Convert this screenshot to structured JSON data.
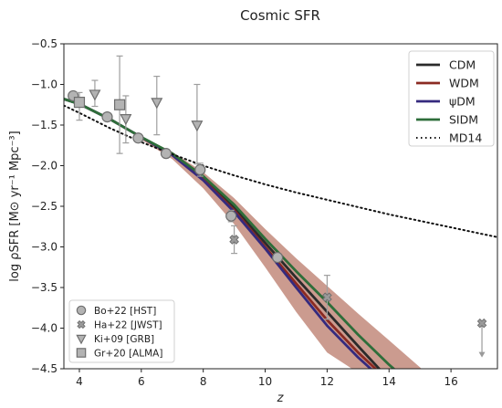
{
  "chart_data": {
    "type": "line",
    "title": "Cosmic SFR",
    "xlabel": "z",
    "ylabel": "log ρSFR [M⊙ yr⁻¹ Mpc⁻³]",
    "xlim": [
      3.5,
      17.5
    ],
    "ylim": [
      -4.5,
      -0.5
    ],
    "xticks": [
      4,
      6,
      8,
      10,
      12,
      14,
      16
    ],
    "yticks": [
      -0.5,
      -1.0,
      -1.5,
      -2.0,
      -2.5,
      -3.0,
      -3.5,
      -4.0,
      -4.5
    ],
    "grid": false,
    "legend_placement": "top-right",
    "series": [
      {
        "name": "CDM",
        "color": "#2b2b2b",
        "style": "solid",
        "x": [
          3.5,
          4.0,
          5.0,
          6.0,
          7.0,
          8.0,
          9.0,
          10.0,
          11.0,
          12.0,
          13.0,
          13.8
        ],
        "y": [
          -1.18,
          -1.24,
          -1.43,
          -1.65,
          -1.86,
          -2.15,
          -2.52,
          -2.95,
          -3.38,
          -3.8,
          -4.22,
          -4.55
        ]
      },
      {
        "name": "WDM",
        "color": "#8b2a22",
        "style": "solid",
        "x": [
          3.5,
          4.0,
          5.0,
          6.0,
          7.0,
          8.0,
          9.0,
          10.0,
          11.0,
          12.0,
          13.0,
          13.7
        ],
        "y": [
          -1.18,
          -1.24,
          -1.43,
          -1.65,
          -1.87,
          -2.17,
          -2.55,
          -3.0,
          -3.45,
          -3.9,
          -4.3,
          -4.55
        ]
      },
      {
        "name": "ψDM",
        "color": "#352a7e",
        "style": "solid",
        "x": [
          3.5,
          4.0,
          5.0,
          6.0,
          7.0,
          8.0,
          9.0,
          10.0,
          11.0,
          12.0,
          13.0,
          13.55
        ],
        "y": [
          -1.18,
          -1.24,
          -1.43,
          -1.65,
          -1.87,
          -2.18,
          -2.57,
          -3.02,
          -3.5,
          -3.97,
          -4.36,
          -4.55
        ]
      },
      {
        "name": "SIDM",
        "color": "#2e6e3a",
        "style": "solid",
        "x": [
          3.5,
          4.0,
          5.0,
          6.0,
          7.0,
          8.0,
          9.0,
          10.0,
          11.0,
          12.0,
          13.0,
          14.0,
          14.3
        ],
        "y": [
          -1.18,
          -1.24,
          -1.43,
          -1.65,
          -1.85,
          -2.13,
          -2.48,
          -2.9,
          -3.3,
          -3.68,
          -4.08,
          -4.45,
          -4.55
        ]
      },
      {
        "name": "MD14",
        "color": "#111111",
        "style": "dotted",
        "x": [
          3.5,
          4.0,
          5.0,
          6.0,
          7.0,
          8.0,
          9.0,
          10.0,
          11.0,
          12.0,
          13.0,
          14.0,
          15.0,
          16.0,
          17.0,
          17.5
        ],
        "y": [
          -1.26,
          -1.35,
          -1.54,
          -1.71,
          -1.86,
          -2.0,
          -2.12,
          -2.23,
          -2.33,
          -2.42,
          -2.51,
          -2.6,
          -2.68,
          -2.76,
          -2.84,
          -2.88
        ]
      }
    ],
    "band": {
      "color": "#b97a6a",
      "x": [
        6.0,
        7.0,
        8.0,
        9.0,
        10.0,
        11.0,
        12.0,
        13.0,
        14.0,
        15.2
      ],
      "upper": [
        -1.64,
        -1.83,
        -2.08,
        -2.4,
        -2.78,
        -3.14,
        -3.48,
        -3.82,
        -4.15,
        -4.55
      ],
      "lower": [
        -1.68,
        -1.92,
        -2.28,
        -2.72,
        -3.25,
        -3.8,
        -4.3,
        -4.55,
        -4.55,
        -4.55
      ]
    },
    "data_points": [
      {
        "name": "Bo+22 [HST]",
        "marker": "circle",
        "points": [
          {
            "x": 3.8,
            "y": -1.14,
            "yerr_lo": 0.05,
            "yerr_hi": 0.05
          },
          {
            "x": 4.9,
            "y": -1.4,
            "yerr_lo": 0.05,
            "yerr_hi": 0.05
          },
          {
            "x": 5.9,
            "y": -1.66,
            "yerr_lo": 0.05,
            "yerr_hi": 0.05
          },
          {
            "x": 6.8,
            "y": -1.85,
            "yerr_lo": 0.05,
            "yerr_hi": 0.05
          },
          {
            "x": 7.9,
            "y": -2.05,
            "yerr_lo": 0.08,
            "yerr_hi": 0.08
          },
          {
            "x": 8.9,
            "y": -2.62,
            "yerr_lo": 0.07,
            "yerr_hi": 0.07
          },
          {
            "x": 10.4,
            "y": -3.13,
            "yerr_lo": 0.05,
            "yerr_hi": 0.05
          }
        ]
      },
      {
        "name": "Ha+22 [JWST]",
        "marker": "x",
        "points": [
          {
            "x": 9.0,
            "y": -2.91,
            "yerr_lo": 0.17,
            "yerr_hi": 0.17
          },
          {
            "x": 12.0,
            "y": -3.62,
            "yerr_lo": 0.27,
            "yerr_hi": 0.27
          },
          {
            "x": 17.0,
            "y": -3.94,
            "upper_limit": true,
            "arrow_to": -4.35
          }
        ]
      },
      {
        "name": "Ki+09 [GRB]",
        "marker": "triangle-down",
        "points": [
          {
            "x": 4.5,
            "y": -1.12,
            "yerr_lo": 0.15,
            "yerr_hi": 0.17
          },
          {
            "x": 5.5,
            "y": -1.42,
            "yerr_lo": 0.3,
            "yerr_hi": 0.28
          },
          {
            "x": 6.5,
            "y": -1.22,
            "yerr_lo": 0.4,
            "yerr_hi": 0.32
          },
          {
            "x": 7.8,
            "y": -1.5,
            "yerr_lo": 0.48,
            "yerr_hi": 0.5
          }
        ]
      },
      {
        "name": "Gr+20 [ALMA]",
        "marker": "square",
        "points": [
          {
            "x": 4.0,
            "y": -1.22,
            "yerr_lo": 0.22,
            "yerr_hi": 0.12
          },
          {
            "x": 5.3,
            "y": -1.25,
            "yerr_lo": 0.6,
            "yerr_hi": 0.6
          }
        ]
      }
    ]
  }
}
